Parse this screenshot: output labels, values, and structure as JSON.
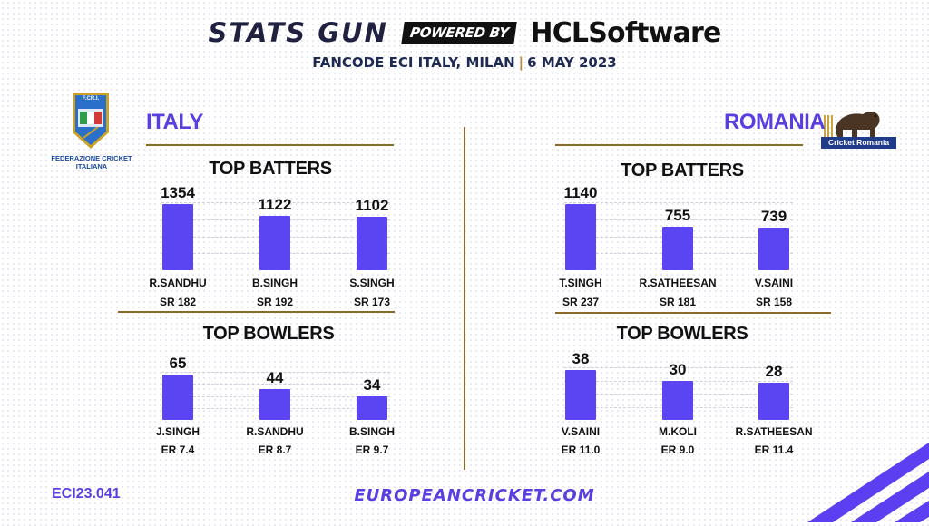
{
  "header": {
    "stats_gun": "STATS GUN",
    "powered_by": "POWERED BY",
    "sponsor": "HCLSoftware",
    "event": "FANCODE ECI ITALY, MILAN",
    "date": "6 MAY 2023"
  },
  "teams": {
    "left": {
      "name": "ITALY",
      "logo_text": "FEDERAZIONE CRICKET ITALIANA",
      "logo_initials": "F.CR.I."
    },
    "right": {
      "name": "ROMANIA",
      "logo_text": "Cricket Romania"
    }
  },
  "sections": {
    "batters_title": "TOP BATTERS",
    "bowlers_title": "TOP BOWLERS"
  },
  "footer": {
    "code": "ECI23.041",
    "url": "EUROPEANCRICKET.COM"
  },
  "colors": {
    "bar": "#5b44f2",
    "accent": "#5a3fe0",
    "divider": "#8c6a2a"
  },
  "chart_data": [
    {
      "id": "italy_batters",
      "type": "bar",
      "title": "TOP BATTERS",
      "categories": [
        "R.SANDHU",
        "B.SINGH",
        "S.SINGH"
      ],
      "values": [
        1354,
        1122,
        1102
      ],
      "value_labels": [
        "1354",
        "1122",
        "1102"
      ],
      "sublabels": [
        "SR 182",
        "SR 192",
        "SR 173"
      ]
    },
    {
      "id": "italy_bowlers",
      "type": "bar",
      "title": "TOP BOWLERS",
      "categories": [
        "J.SINGH",
        "R.SANDHU",
        "B.SINGH"
      ],
      "values": [
        65,
        44,
        34
      ],
      "value_labels": [
        "65",
        "44",
        "34"
      ],
      "sublabels": [
        "ER 7.4",
        "ER 8.7",
        "ER 9.7"
      ]
    },
    {
      "id": "romania_batters",
      "type": "bar",
      "title": "TOP BATTERS",
      "categories": [
        "T.SINGH",
        "R.SATHEESAN",
        "V.SAINI"
      ],
      "values": [
        1140,
        755,
        739
      ],
      "value_labels": [
        "1140",
        "755",
        "739"
      ],
      "sublabels": [
        "SR 237",
        "SR 181",
        "SR 158"
      ]
    },
    {
      "id": "romania_bowlers",
      "type": "bar",
      "title": "TOP BOWLERS",
      "categories": [
        "V.SAINI",
        "M.KOLI",
        "R.SATHEESAN"
      ],
      "values": [
        38,
        30,
        28
      ],
      "value_labels": [
        "38",
        "30",
        "28"
      ],
      "sublabels": [
        "ER 11.0",
        "ER 9.0",
        "ER 11.4"
      ]
    }
  ]
}
